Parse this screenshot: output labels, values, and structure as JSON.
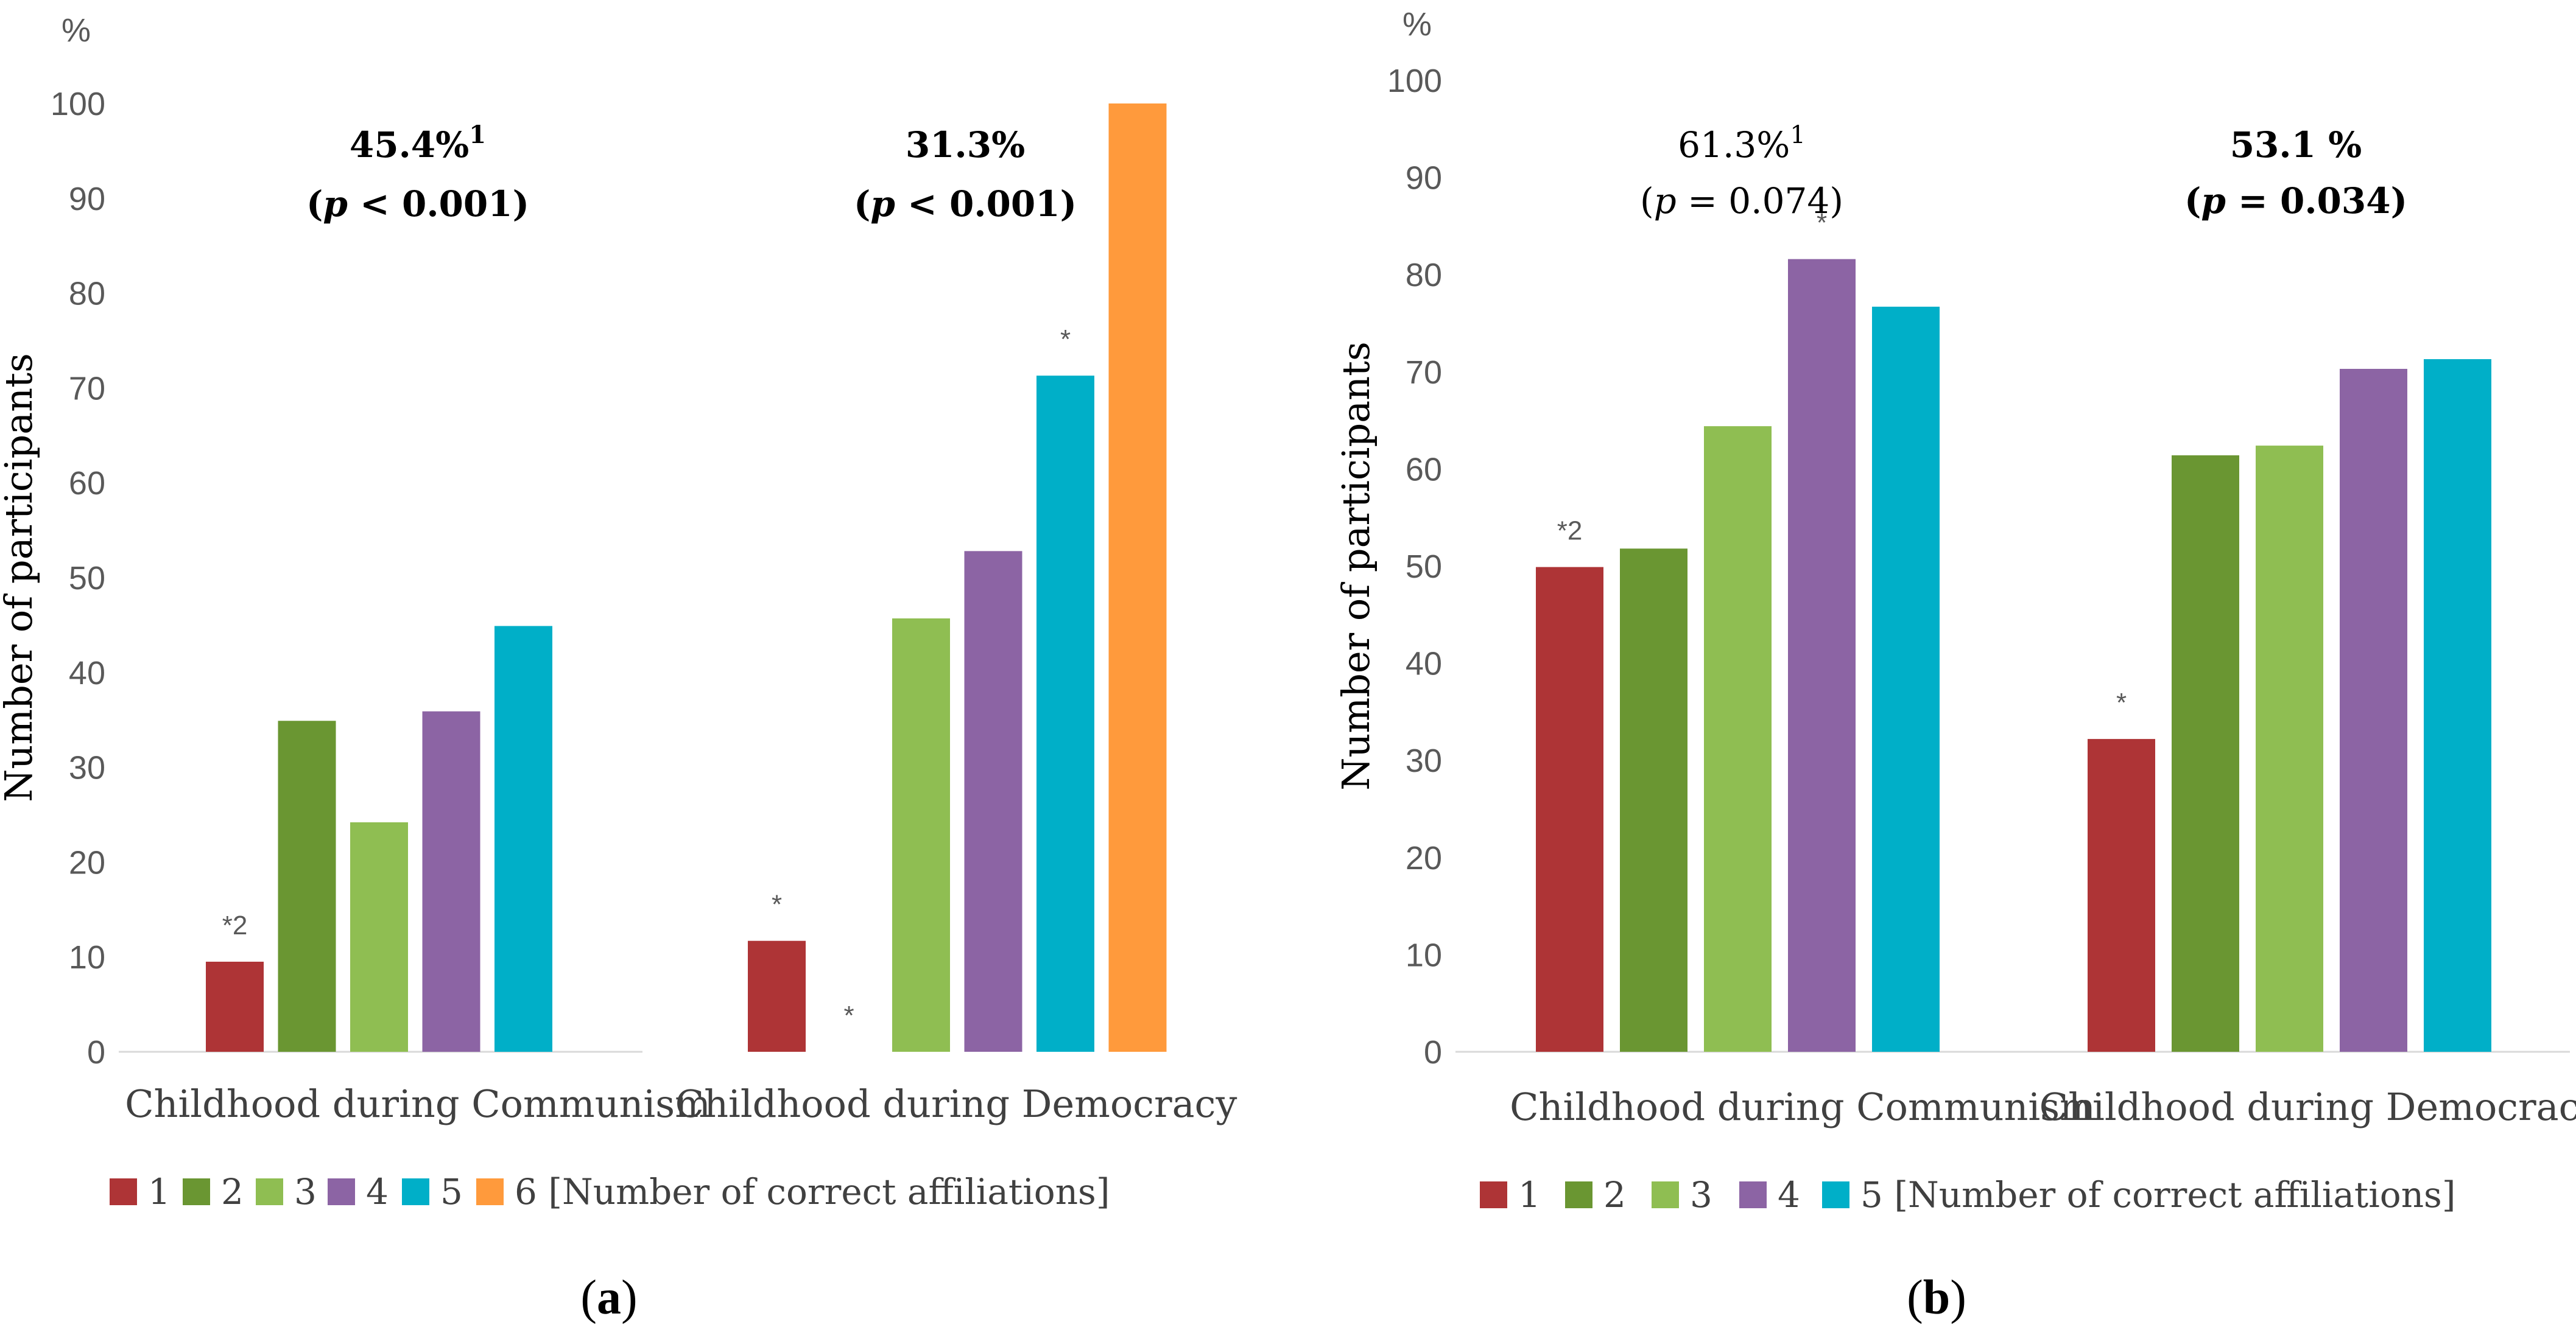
{
  "colors": {
    "1": "#AE3436",
    "2": "#6A9632",
    "3": "#8FBE52",
    "4": "#8C64A4",
    "5": "#00AFC8",
    "6": "#FF9A3C",
    "axis": "#D9D9D9",
    "text": "#595959"
  },
  "chart_data": [
    {
      "id": "a",
      "type": "bar",
      "panel_label": "a",
      "yunit": "%",
      "ylabel": "Number of participants",
      "ylim": [
        0,
        100
      ],
      "yticks": [
        0,
        10,
        20,
        30,
        40,
        50,
        60,
        70,
        80,
        90,
        100
      ],
      "categories": [
        "Childhood during Communism",
        "Childhood during Democracy"
      ],
      "series": [
        {
          "name": "1",
          "values": [
            9.5,
            11.7
          ]
        },
        {
          "name": "2",
          "values": [
            34.9,
            0
          ]
        },
        {
          "name": "3",
          "values": [
            24.2,
            45.7
          ]
        },
        {
          "name": "4",
          "values": [
            35.9,
            52.8
          ]
        },
        {
          "name": "5",
          "values": [
            44.9,
            71.3
          ]
        },
        {
          "name": "6",
          "values": [
            null,
            100
          ]
        }
      ],
      "legend_title": "[Number of correct affiliations]",
      "legend_position": "bottom",
      "annotations": [
        {
          "category": 0,
          "line1": "45.4%",
          "sup": "1",
          "line2_prefix": "(",
          "p": "p",
          "line2_rest": " < 0.001)",
          "bold": true
        },
        {
          "category": 1,
          "line1": "31.3%",
          "sup": "",
          "line2_prefix": "(",
          "p": "p",
          "line2_rest": " < 0.001)",
          "bold": true
        }
      ],
      "markers": [
        {
          "category": 0,
          "series": 0,
          "text": "*2"
        },
        {
          "category": 1,
          "series": 0,
          "text": "*"
        },
        {
          "category": 1,
          "series": 1,
          "text": "*"
        },
        {
          "category": 1,
          "series": 4,
          "text": "*"
        }
      ]
    },
    {
      "id": "b",
      "type": "bar",
      "panel_label": "b",
      "yunit": "%",
      "ylabel": "Number of participants",
      "ylim": [
        0,
        100
      ],
      "yticks": [
        0,
        10,
        20,
        30,
        40,
        50,
        60,
        70,
        80,
        90,
        100
      ],
      "categories": [
        "Childhood during Communism",
        "Childhood during Democracy"
      ],
      "series": [
        {
          "name": "1",
          "values": [
            49.9,
            32.2
          ]
        },
        {
          "name": "2",
          "values": [
            51.8,
            61.4
          ]
        },
        {
          "name": "3",
          "values": [
            64.4,
            62.4
          ]
        },
        {
          "name": "4",
          "values": [
            81.6,
            70.3
          ]
        },
        {
          "name": "5",
          "values": [
            76.7,
            71.3
          ]
        }
      ],
      "legend_title": "[Number of correct affiliations]",
      "legend_position": "bottom",
      "annotations": [
        {
          "category": 0,
          "line1": "61.3%",
          "sup": "1",
          "line2_prefix": "(",
          "p": "p",
          "line2_rest": " = 0.074)",
          "bold": false
        },
        {
          "category": 1,
          "line1": "53.1 %",
          "sup": "",
          "line2_prefix": "(",
          "p": "p",
          "line2_rest": " = 0.034)",
          "bold": true
        }
      ],
      "markers": [
        {
          "category": 0,
          "series": 0,
          "text": "*2"
        },
        {
          "category": 0,
          "series": 3,
          "text": "*"
        },
        {
          "category": 1,
          "series": 0,
          "text": "*"
        }
      ]
    }
  ]
}
